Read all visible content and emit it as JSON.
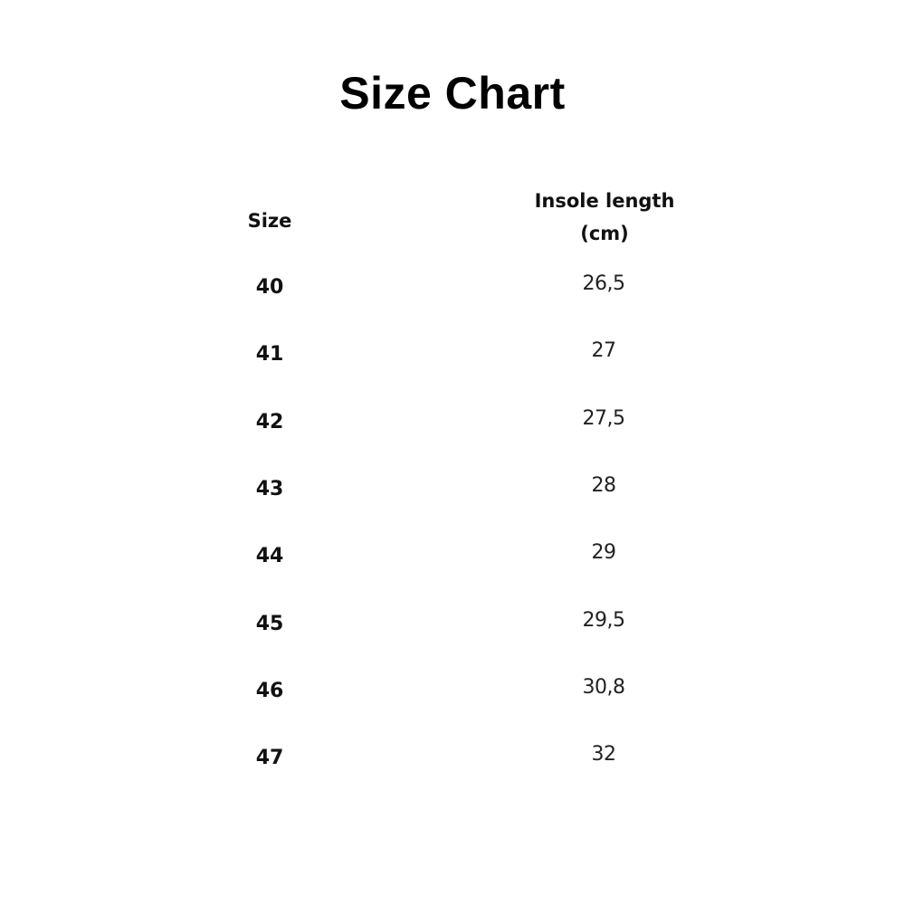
{
  "title": "Size Chart",
  "table": {
    "headers": [
      "Size",
      "Insole length",
      "(cm)"
    ],
    "rows": [
      {
        "size": "40",
        "insole_cm": "26,5"
      },
      {
        "size": "41",
        "insole_cm": "27"
      },
      {
        "size": "42",
        "insole_cm": "27,5"
      },
      {
        "size": "43",
        "insole_cm": "28"
      },
      {
        "size": "44",
        "insole_cm": "29"
      },
      {
        "size": "45",
        "insole_cm": "29,5"
      },
      {
        "size": "46",
        "insole_cm": "30,8"
      },
      {
        "size": "47",
        "insole_cm": "32"
      }
    ]
  }
}
